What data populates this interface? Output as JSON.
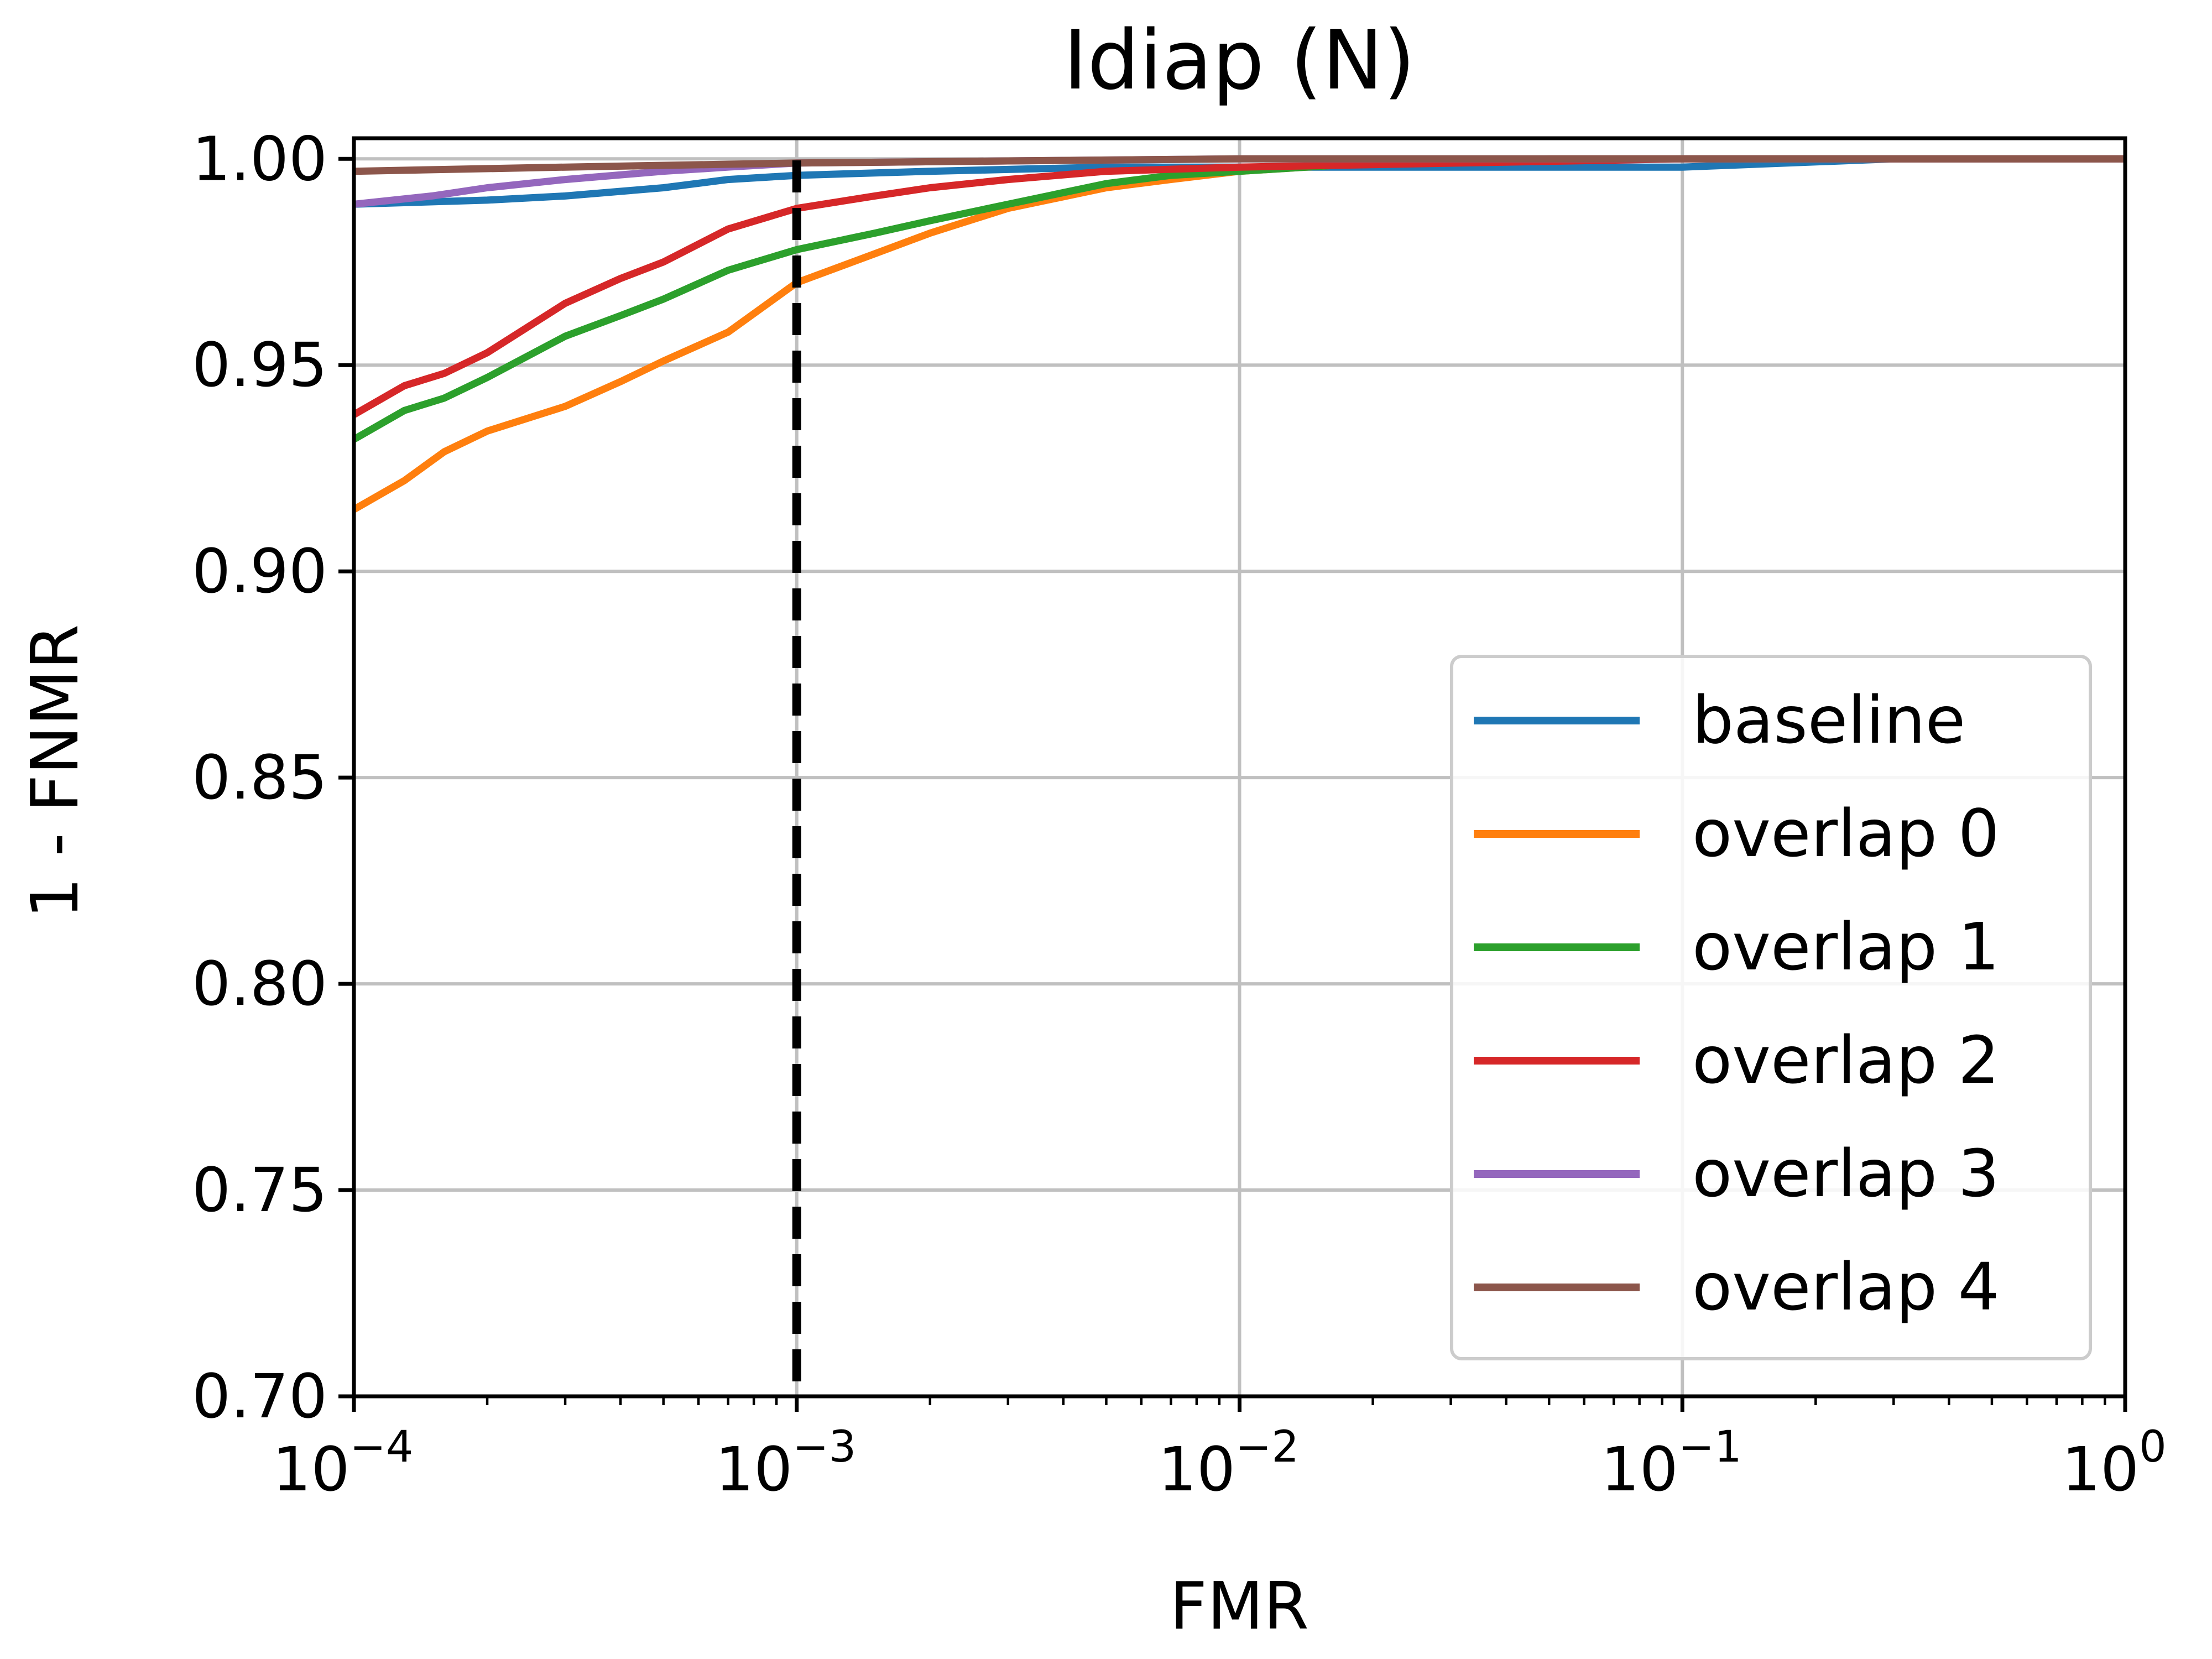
{
  "chart_data": {
    "type": "line",
    "title": "Idiap (N)",
    "xlabel": "FMR",
    "ylabel": "1 - FNMR",
    "xscale": "log",
    "xlim": [
      0.0001,
      1
    ],
    "ylim": [
      0.7,
      1.005
    ],
    "grid": true,
    "legend_position": "lower-right",
    "yticks": [
      0.7,
      0.75,
      0.8,
      0.85,
      0.9,
      0.95,
      1.0
    ],
    "ytick_labels": [
      "0.70",
      "0.75",
      "0.80",
      "0.85",
      "0.90",
      "0.95",
      "1.00"
    ],
    "xticks": [
      {
        "value": 0.0001,
        "base": "10",
        "exp": "−4"
      },
      {
        "value": 0.001,
        "base": "10",
        "exp": "−3"
      },
      {
        "value": 0.01,
        "base": "10",
        "exp": "−2"
      },
      {
        "value": 0.1,
        "base": "10",
        "exp": "−1"
      },
      {
        "value": 1,
        "base": "10",
        "exp": "0"
      }
    ],
    "reference_line": {
      "x": 0.001,
      "style": "dashed",
      "color": "#000000"
    },
    "series": [
      {
        "name": "baseline",
        "color": "#1f77b4",
        "x": [
          0.0001,
          0.0002,
          0.0003,
          0.0005,
          0.0007,
          0.001,
          0.002,
          0.005,
          0.01,
          0.05,
          0.1,
          0.3,
          1
        ],
        "y": [
          0.989,
          0.99,
          0.991,
          0.993,
          0.995,
          0.996,
          0.997,
          0.998,
          0.998,
          0.998,
          0.998,
          1.0,
          1.0
        ]
      },
      {
        "name": "overlap 0",
        "color": "#ff7f0e",
        "x": [
          0.0001,
          0.00013,
          0.00016,
          0.0002,
          0.0003,
          0.0004,
          0.0005,
          0.0007,
          0.001,
          0.0015,
          0.002,
          0.003,
          0.005,
          0.007,
          0.01,
          0.02,
          0.05,
          0.1,
          1
        ],
        "y": [
          0.915,
          0.922,
          0.929,
          0.934,
          0.94,
          0.946,
          0.951,
          0.958,
          0.97,
          0.977,
          0.982,
          0.988,
          0.993,
          0.995,
          0.997,
          0.999,
          1.0,
          1.0,
          1.0
        ]
      },
      {
        "name": "overlap 1",
        "color": "#2ca02c",
        "x": [
          0.0001,
          0.00013,
          0.00016,
          0.0002,
          0.0003,
          0.0004,
          0.0005,
          0.0007,
          0.001,
          0.0015,
          0.002,
          0.003,
          0.005,
          0.007,
          0.01,
          0.02,
          0.1,
          1
        ],
        "y": [
          0.932,
          0.939,
          0.942,
          0.947,
          0.957,
          0.962,
          0.966,
          0.973,
          0.978,
          0.982,
          0.985,
          0.989,
          0.994,
          0.996,
          0.997,
          0.999,
          1.0,
          1.0
        ]
      },
      {
        "name": "overlap 2",
        "color": "#d62728",
        "x": [
          0.0001,
          0.00013,
          0.00016,
          0.0002,
          0.0003,
          0.0004,
          0.0005,
          0.0007,
          0.001,
          0.0015,
          0.002,
          0.003,
          0.005,
          0.01,
          0.1,
          1
        ],
        "y": [
          0.938,
          0.945,
          0.948,
          0.953,
          0.965,
          0.971,
          0.975,
          0.983,
          0.988,
          0.991,
          0.993,
          0.995,
          0.997,
          0.998,
          1.0,
          1.0
        ]
      },
      {
        "name": "overlap 3",
        "color": "#9467bd",
        "x": [
          0.0001,
          0.00015,
          0.0002,
          0.0003,
          0.0005,
          0.0007,
          0.001,
          0.003,
          0.01,
          1
        ],
        "y": [
          0.989,
          0.991,
          0.993,
          0.995,
          0.997,
          0.998,
          0.999,
          0.9995,
          1.0,
          1.0
        ]
      },
      {
        "name": "overlap 4",
        "color": "#8c564b",
        "x": [
          0.0001,
          0.0003,
          0.001,
          0.003,
          0.01,
          0.1,
          1
        ],
        "y": [
          0.997,
          0.998,
          0.999,
          0.9995,
          1.0,
          1.0,
          1.0
        ]
      }
    ]
  }
}
